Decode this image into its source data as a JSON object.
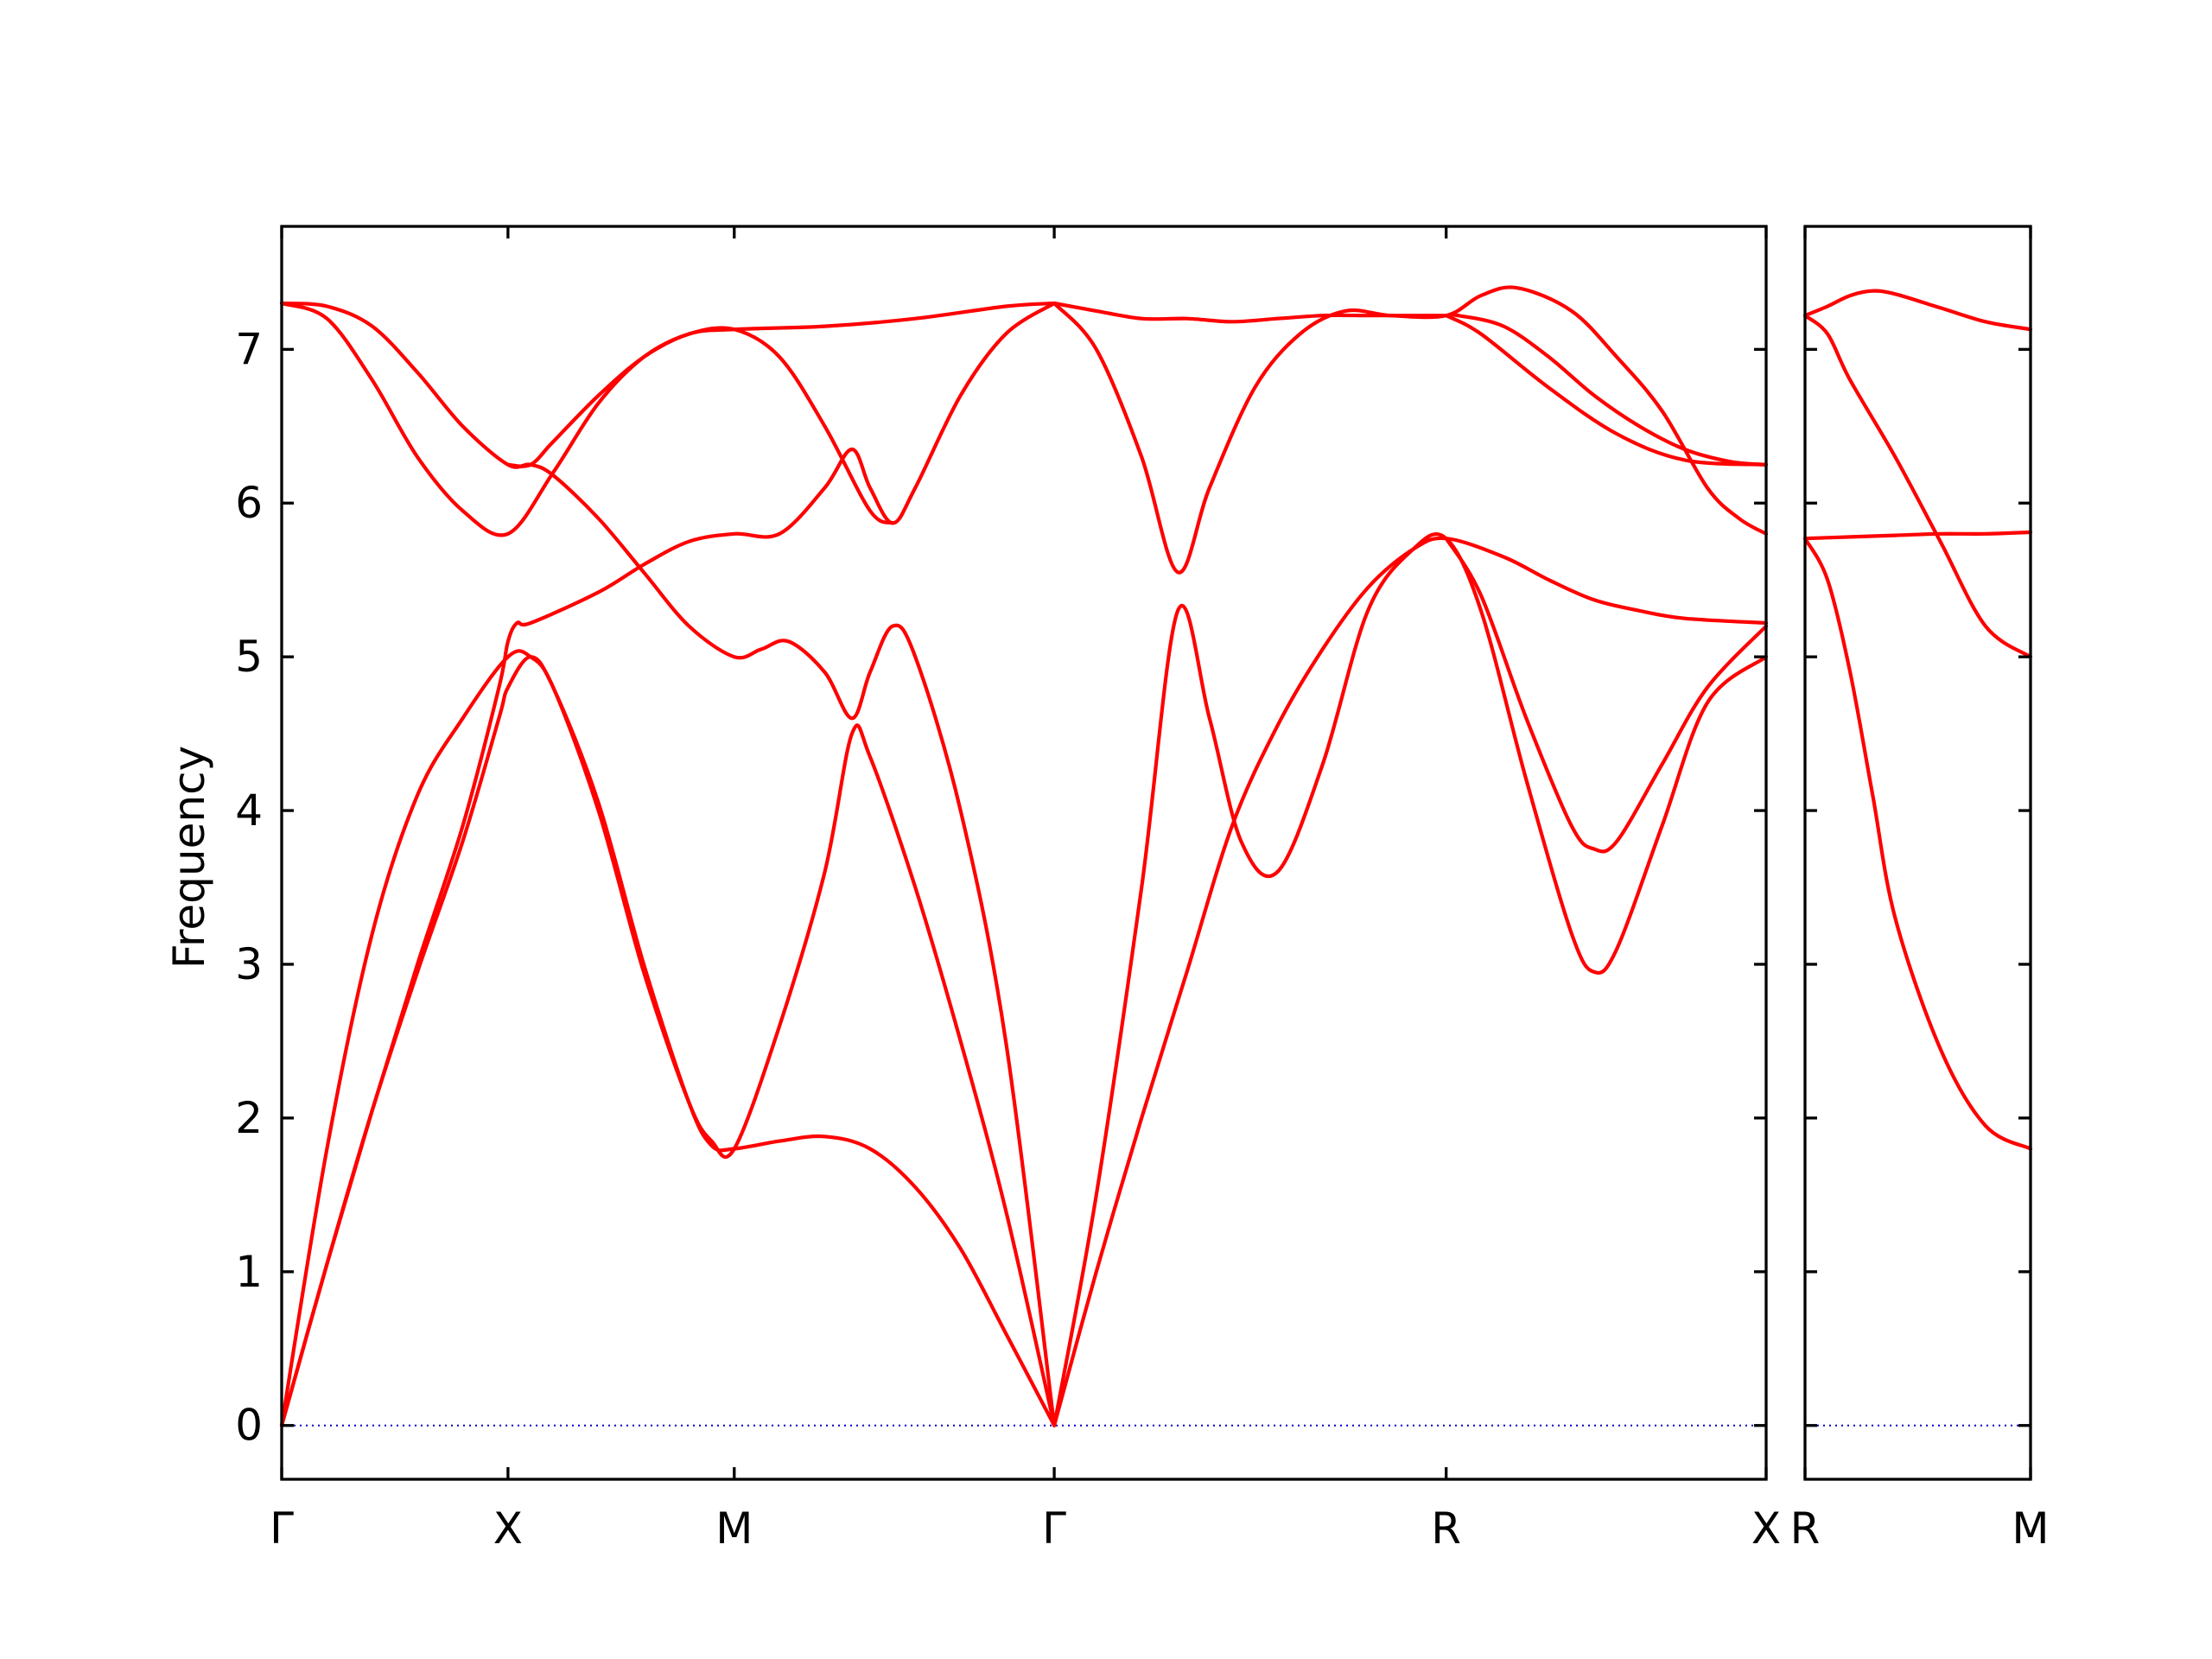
{
  "chart_data": {
    "type": "line",
    "ylabel": "Frequency",
    "ylim": [
      -0.35,
      7.8
    ],
    "yticks": [
      0,
      1,
      2,
      3,
      4,
      5,
      6,
      7
    ],
    "grid": false,
    "colors": {
      "bands": "#ff0000",
      "zero_line": "#0000cc"
    },
    "panels": [
      {
        "id": "main",
        "path_labels": [
          "Γ",
          "X",
          "M",
          "Γ",
          "R",
          "X"
        ],
        "path_positions": [
          0,
          0.5,
          1.0,
          1.707,
          2.573,
          3.28
        ],
        "xlim": [
          0,
          3.28
        ],
        "series": [
          {
            "values": [
              [
                0,
                0
              ],
              [
                0.1,
                1.05
              ],
              [
                0.2,
                2.05
              ],
              [
                0.3,
                2.95
              ],
              [
                0.4,
                3.8
              ],
              [
                0.48,
                4.6
              ],
              [
                0.5,
                4.8
              ],
              [
                0.55,
                5.0
              ],
              [
                0.6,
                4.8
              ],
              [
                0.7,
                4.05
              ],
              [
                0.8,
                3.0
              ],
              [
                0.9,
                2.1
              ],
              [
                0.95,
                1.82
              ],
              [
                1.0,
                1.8
              ],
              [
                1.1,
                1.85
              ],
              [
                1.2,
                1.88
              ],
              [
                1.3,
                1.8
              ],
              [
                1.4,
                1.55
              ],
              [
                1.5,
                1.15
              ],
              [
                1.6,
                0.6
              ],
              [
                1.707,
                0
              ]
            ]
          },
          {
            "values": [
              [
                0,
                0
              ],
              [
                0.1,
                1.8
              ],
              [
                0.2,
                3.2
              ],
              [
                0.3,
                4.1
              ],
              [
                0.4,
                4.6
              ],
              [
                0.5,
                5.0
              ],
              [
                0.55,
                5.0
              ],
              [
                0.6,
                4.8
              ],
              [
                0.7,
                4.0
              ],
              [
                0.8,
                2.95
              ],
              [
                0.9,
                2.1
              ],
              [
                0.95,
                1.85
              ],
              [
                1.0,
                1.8
              ],
              [
                1.1,
                2.6
              ],
              [
                1.2,
                3.6
              ],
              [
                1.26,
                4.5
              ],
              [
                1.3,
                4.35
              ],
              [
                1.4,
                3.5
              ],
              [
                1.5,
                2.5
              ],
              [
                1.6,
                1.4
              ],
              [
                1.707,
                0
              ]
            ]
          },
          {
            "values": [
              [
                0,
                0
              ],
              [
                0.1,
                1.05
              ],
              [
                0.2,
                2.05
              ],
              [
                0.3,
                3.0
              ],
              [
                0.4,
                3.9
              ],
              [
                0.48,
                4.8
              ],
              [
                0.5,
                5.1
              ],
              [
                0.52,
                5.22
              ],
              [
                0.55,
                5.22
              ],
              [
                0.7,
                5.42
              ],
              [
                0.8,
                5.6
              ],
              [
                0.9,
                5.75
              ],
              [
                1.0,
                5.8
              ],
              [
                1.1,
                5.8
              ],
              [
                1.2,
                6.1
              ],
              [
                1.26,
                6.35
              ],
              [
                1.3,
                6.1
              ],
              [
                1.35,
                5.87
              ],
              [
                1.4,
                6.1
              ],
              [
                1.5,
                6.7
              ],
              [
                1.6,
                7.1
              ],
              [
                1.707,
                7.3
              ]
            ]
          },
          {
            "values": [
              [
                0,
                7.3
              ],
              [
                0.1,
                7.2
              ],
              [
                0.2,
                6.8
              ],
              [
                0.3,
                6.3
              ],
              [
                0.4,
                5.95
              ],
              [
                0.5,
                5.8
              ],
              [
                0.6,
                6.2
              ],
              [
                0.7,
                6.65
              ],
              [
                0.8,
                6.95
              ],
              [
                0.9,
                7.1
              ],
              [
                1.0,
                7.13
              ],
              [
                1.1,
                6.95
              ],
              [
                1.2,
                6.5
              ],
              [
                1.3,
                5.95
              ],
              [
                1.35,
                5.87
              ]
            ]
          },
          {
            "values": [
              [
                0,
                7.3
              ],
              [
                0.1,
                7.28
              ],
              [
                0.2,
                7.15
              ],
              [
                0.3,
                6.85
              ],
              [
                0.4,
                6.5
              ],
              [
                0.5,
                6.25
              ],
              [
                0.55,
                6.25
              ],
              [
                0.6,
                6.18
              ],
              [
                0.7,
                5.9
              ],
              [
                0.8,
                5.55
              ],
              [
                0.9,
                5.2
              ],
              [
                1.0,
                5.0
              ],
              [
                1.06,
                5.05
              ],
              [
                1.12,
                5.1
              ],
              [
                1.2,
                4.9
              ],
              [
                1.26,
                4.6
              ],
              [
                1.3,
                4.9
              ],
              [
                1.35,
                5.2
              ],
              [
                1.4,
                5.0
              ],
              [
                1.5,
                4.0
              ],
              [
                1.6,
                2.5
              ],
              [
                1.707,
                0
              ]
            ]
          },
          {
            "values": [
              [
                0.5,
                6.25
              ],
              [
                0.55,
                6.25
              ],
              [
                0.6,
                6.4
              ],
              [
                0.7,
                6.7
              ],
              [
                0.8,
                6.95
              ],
              [
                0.9,
                7.1
              ],
              [
                1.0,
                7.13
              ],
              [
                1.2,
                7.15
              ],
              [
                1.4,
                7.2
              ],
              [
                1.6,
                7.28
              ],
              [
                1.707,
                7.3
              ]
            ]
          },
          {
            "values": [
              [
                1.707,
                7.3
              ],
              [
                1.8,
                7.25
              ],
              [
                1.9,
                7.2
              ],
              [
                2.0,
                7.2
              ],
              [
                2.1,
                7.18
              ],
              [
                2.2,
                7.2
              ],
              [
                2.3,
                7.22
              ],
              [
                2.4,
                7.22
              ],
              [
                2.5,
                7.22
              ],
              [
                2.573,
                7.22
              ],
              [
                2.6,
                7.22
              ],
              [
                2.7,
                7.15
              ],
              [
                2.8,
                6.95
              ],
              [
                2.9,
                6.7
              ],
              [
                3.0,
                6.5
              ],
              [
                3.1,
                6.35
              ],
              [
                3.2,
                6.27
              ],
              [
                3.28,
                6.25
              ]
            ]
          },
          {
            "values": [
              [
                1.707,
                7.3
              ],
              [
                1.8,
                7.0
              ],
              [
                1.9,
                6.3
              ],
              [
                1.98,
                5.55
              ],
              [
                2.05,
                6.1
              ],
              [
                2.15,
                6.75
              ],
              [
                2.25,
                7.1
              ],
              [
                2.35,
                7.25
              ],
              [
                2.45,
                7.22
              ],
              [
                2.573,
                7.22
              ],
              [
                2.65,
                7.35
              ],
              [
                2.73,
                7.4
              ],
              [
                2.85,
                7.25
              ],
              [
                2.95,
                6.95
              ],
              [
                3.05,
                6.6
              ],
              [
                3.15,
                6.1
              ],
              [
                3.22,
                5.9
              ],
              [
                3.28,
                5.8
              ]
            ]
          },
          {
            "values": [
              [
                2.573,
                7.22
              ],
              [
                2.65,
                7.1
              ],
              [
                2.8,
                6.75
              ],
              [
                2.95,
                6.45
              ],
              [
                3.1,
                6.28
              ],
              [
                3.28,
                6.25
              ]
            ]
          },
          {
            "values": [
              [
                1.707,
                0
              ],
              [
                1.8,
                1.0
              ],
              [
                1.9,
                2.0
              ],
              [
                2.0,
                2.95
              ],
              [
                2.1,
                3.9
              ],
              [
                2.2,
                4.55
              ],
              [
                2.3,
                5.05
              ],
              [
                2.4,
                5.45
              ],
              [
                2.5,
                5.7
              ],
              [
                2.573,
                5.77
              ],
              [
                2.7,
                5.65
              ],
              [
                2.8,
                5.5
              ],
              [
                2.9,
                5.37
              ],
              [
                3.0,
                5.3
              ],
              [
                3.1,
                5.25
              ],
              [
                3.28,
                5.22
              ]
            ]
          },
          {
            "values": [
              [
                1.707,
                0
              ],
              [
                1.8,
                1.5
              ],
              [
                1.9,
                3.5
              ],
              [
                1.98,
                5.3
              ],
              [
                2.05,
                4.6
              ],
              [
                2.12,
                3.8
              ],
              [
                2.2,
                3.6
              ],
              [
                2.3,
                4.3
              ],
              [
                2.4,
                5.3
              ],
              [
                2.5,
                5.7
              ],
              [
                2.573,
                5.77
              ],
              [
                2.65,
                5.3
              ],
              [
                2.75,
                4.2
              ],
              [
                2.85,
                3.2
              ],
              [
                2.9,
                2.95
              ],
              [
                2.95,
                3.1
              ],
              [
                3.05,
                3.9
              ],
              [
                3.15,
                4.7
              ],
              [
                3.28,
                5.0
              ]
            ]
          },
          {
            "values": [
              [
                2.573,
                5.77
              ],
              [
                2.65,
                5.4
              ],
              [
                2.75,
                4.6
              ],
              [
                2.85,
                3.9
              ],
              [
                2.9,
                3.75
              ],
              [
                2.95,
                3.8
              ],
              [
                3.05,
                4.3
              ],
              [
                3.15,
                4.8
              ],
              [
                3.28,
                5.2
              ]
            ]
          }
        ]
      },
      {
        "id": "right",
        "path_labels": [
          "R",
          "M"
        ],
        "path_positions": [
          0,
          0.5
        ],
        "xlim": [
          0,
          0.5
        ],
        "series": [
          {
            "values": [
              [
                0,
                7.22
              ],
              [
                0.05,
                7.28
              ],
              [
                0.1,
                7.35
              ],
              [
                0.15,
                7.38
              ],
              [
                0.2,
                7.36
              ],
              [
                0.3,
                7.27
              ],
              [
                0.4,
                7.18
              ],
              [
                0.5,
                7.13
              ]
            ]
          },
          {
            "values": [
              [
                0,
                7.22
              ],
              [
                0.05,
                7.1
              ],
              [
                0.1,
                6.8
              ],
              [
                0.2,
                6.3
              ],
              [
                0.3,
                5.75
              ],
              [
                0.4,
                5.2
              ],
              [
                0.5,
                5.0
              ]
            ]
          },
          {
            "values": [
              [
                0,
                5.77
              ],
              [
                0.1,
                5.78
              ],
              [
                0.2,
                5.79
              ],
              [
                0.3,
                5.8
              ],
              [
                0.4,
                5.8
              ],
              [
                0.5,
                5.81
              ]
            ]
          },
          {
            "values": [
              [
                0,
                5.77
              ],
              [
                0.05,
                5.5
              ],
              [
                0.1,
                4.9
              ],
              [
                0.15,
                4.1
              ],
              [
                0.2,
                3.3
              ],
              [
                0.3,
                2.45
              ],
              [
                0.4,
                1.95
              ],
              [
                0.5,
                1.8
              ]
            ]
          }
        ]
      }
    ]
  }
}
